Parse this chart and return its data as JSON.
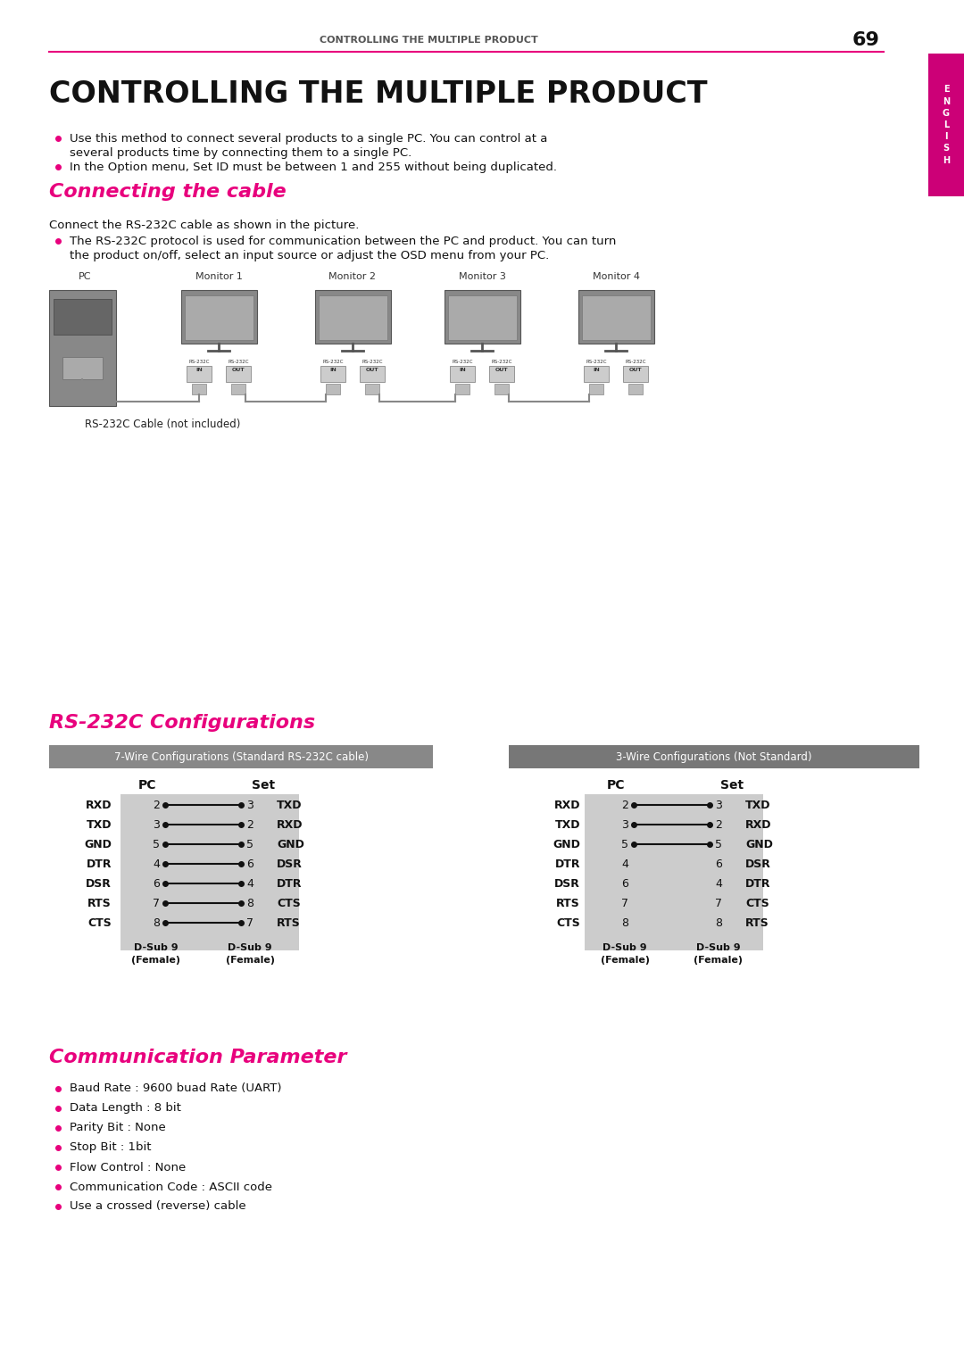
{
  "page_header_text": "CONTROLLING THE MULTIPLE PRODUCT",
  "page_number": "69",
  "main_title": "CONTROLLING THE MULTIPLE PRODUCT",
  "bullet_points": [
    "Use this method to connect several products to a single PC. You can control several products at a time by connecting them to a single PC.",
    "In the Option menu, Set ID must be between 1 and 255 without being duplicated."
  ],
  "section1_title": "Connecting the cable",
  "section1_intro": "Connect the RS-232C cable as shown in the picture.",
  "section1_bullet": "The RS-232C protocol is used for communication between the PC and product. You can turn the product on/off, select an input source or adjust the OSD menu from your PC.",
  "diagram_labels": [
    "PC",
    "Monitor 1",
    "Monitor 2",
    "Monitor 3",
    "Monitor 4"
  ],
  "cable_label": "RS-232C Cable (not included)",
  "section2_title": "RS-232C Configurations",
  "config1_title": "7-Wire Configurations (Standard RS-232C cable)",
  "config2_title": "3-Wire Configurations (Not Standard)",
  "wire7_pc_labels": [
    "RXD",
    "TXD",
    "GND",
    "DTR",
    "DSR",
    "RTS",
    "CTS"
  ],
  "wire7_pc_nums": [
    "2",
    "3",
    "5",
    "4",
    "6",
    "7",
    "8"
  ],
  "wire7_set_nums": [
    "3",
    "2",
    "5",
    "6",
    "4",
    "8",
    "7"
  ],
  "wire7_set_labels": [
    "TXD",
    "RXD",
    "GND",
    "DSR",
    "DTR",
    "CTS",
    "RTS"
  ],
  "wire3_pc_labels": [
    "RXD",
    "TXD",
    "GND",
    "DTR",
    "DSR",
    "RTS",
    "CTS"
  ],
  "wire3_pc_nums": [
    "2",
    "3",
    "5",
    "4",
    "6",
    "7",
    "8"
  ],
  "wire3_set_nums": [
    "3",
    "2",
    "5",
    "6",
    "4",
    "7",
    "8"
  ],
  "wire3_set_labels": [
    "TXD",
    "RXD",
    "GND",
    "DSR",
    "DTR",
    "CTS",
    "RTS"
  ],
  "wire3_connected": [
    0,
    1,
    2
  ],
  "dsub_label": "D-Sub 9",
  "female_label": "(Female)",
  "section3_title": "Communication Parameter",
  "comm_params": [
    "Baud Rate : 9600 buad Rate (UART)",
    "Data Length : 8 bit",
    "Parity Bit : None",
    "Stop Bit : 1bit",
    "Flow Control : None",
    "Communication Code : ASCII code",
    "Use a crossed (reverse) cable"
  ],
  "pink_color": "#E8007D",
  "header_line_color": "#E8007D",
  "gray_bg": "#808080",
  "light_gray_bg": "#D0D0D0",
  "dark_gray_bg": "#606060",
  "sidebar_color": "#CC0077",
  "black": "#000000",
  "white": "#FFFFFF"
}
